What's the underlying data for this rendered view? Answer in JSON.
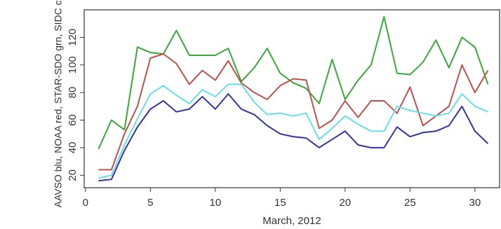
{
  "chart_data": {
    "type": "line",
    "xlabel": "March, 2012",
    "ylabel": "AAVSO blu, NOAA red, STAR-SDO grn, SIDC cyn",
    "x": [
      1,
      2,
      3,
      4,
      5,
      6,
      7,
      8,
      9,
      10,
      11,
      12,
      13,
      14,
      15,
      16,
      17,
      18,
      19,
      20,
      21,
      22,
      23,
      24,
      25,
      26,
      27,
      28,
      29,
      30,
      31
    ],
    "series": [
      {
        "color": "#3aa83a",
        "values": [
          39,
          60,
          53,
          113,
          109,
          108,
          125,
          107,
          107,
          107,
          112,
          88,
          98,
          112,
          94,
          87,
          83,
          72,
          104,
          75,
          89,
          100,
          135,
          94,
          93,
          102,
          118,
          98,
          120,
          113,
          86
        ]
      },
      {
        "color": "#c0504d",
        "values": [
          24,
          24,
          50,
          70,
          105,
          108,
          101,
          86,
          96,
          89,
          103,
          87,
          80,
          75,
          85,
          90,
          89,
          54,
          60,
          74,
          62,
          74,
          74,
          65,
          84,
          56,
          63,
          70,
          100,
          80,
          96
        ]
      },
      {
        "color": "#66e0e8",
        "values": [
          18,
          20,
          42,
          61,
          79,
          85,
          78,
          72,
          82,
          77,
          86,
          86,
          73,
          64,
          65,
          63,
          65,
          46,
          54,
          63,
          57,
          52,
          52,
          70,
          67,
          65,
          63,
          65,
          79,
          70,
          66
        ]
      },
      {
        "color": "#3333a0",
        "values": [
          16,
          17,
          38,
          55,
          68,
          74,
          66,
          68,
          77,
          68,
          79,
          68,
          64,
          56,
          50,
          48,
          47,
          40,
          46,
          52,
          42,
          40,
          40,
          55,
          48,
          51,
          52,
          56,
          70,
          52,
          43
        ]
      }
    ],
    "xlim": [
      -0.1,
      31.9
    ],
    "xticks": [
      0,
      5,
      10,
      15,
      20,
      25,
      30
    ],
    "ylim": [
      11,
      140
    ],
    "yticks": [
      20,
      40,
      60,
      80,
      100,
      120
    ]
  }
}
